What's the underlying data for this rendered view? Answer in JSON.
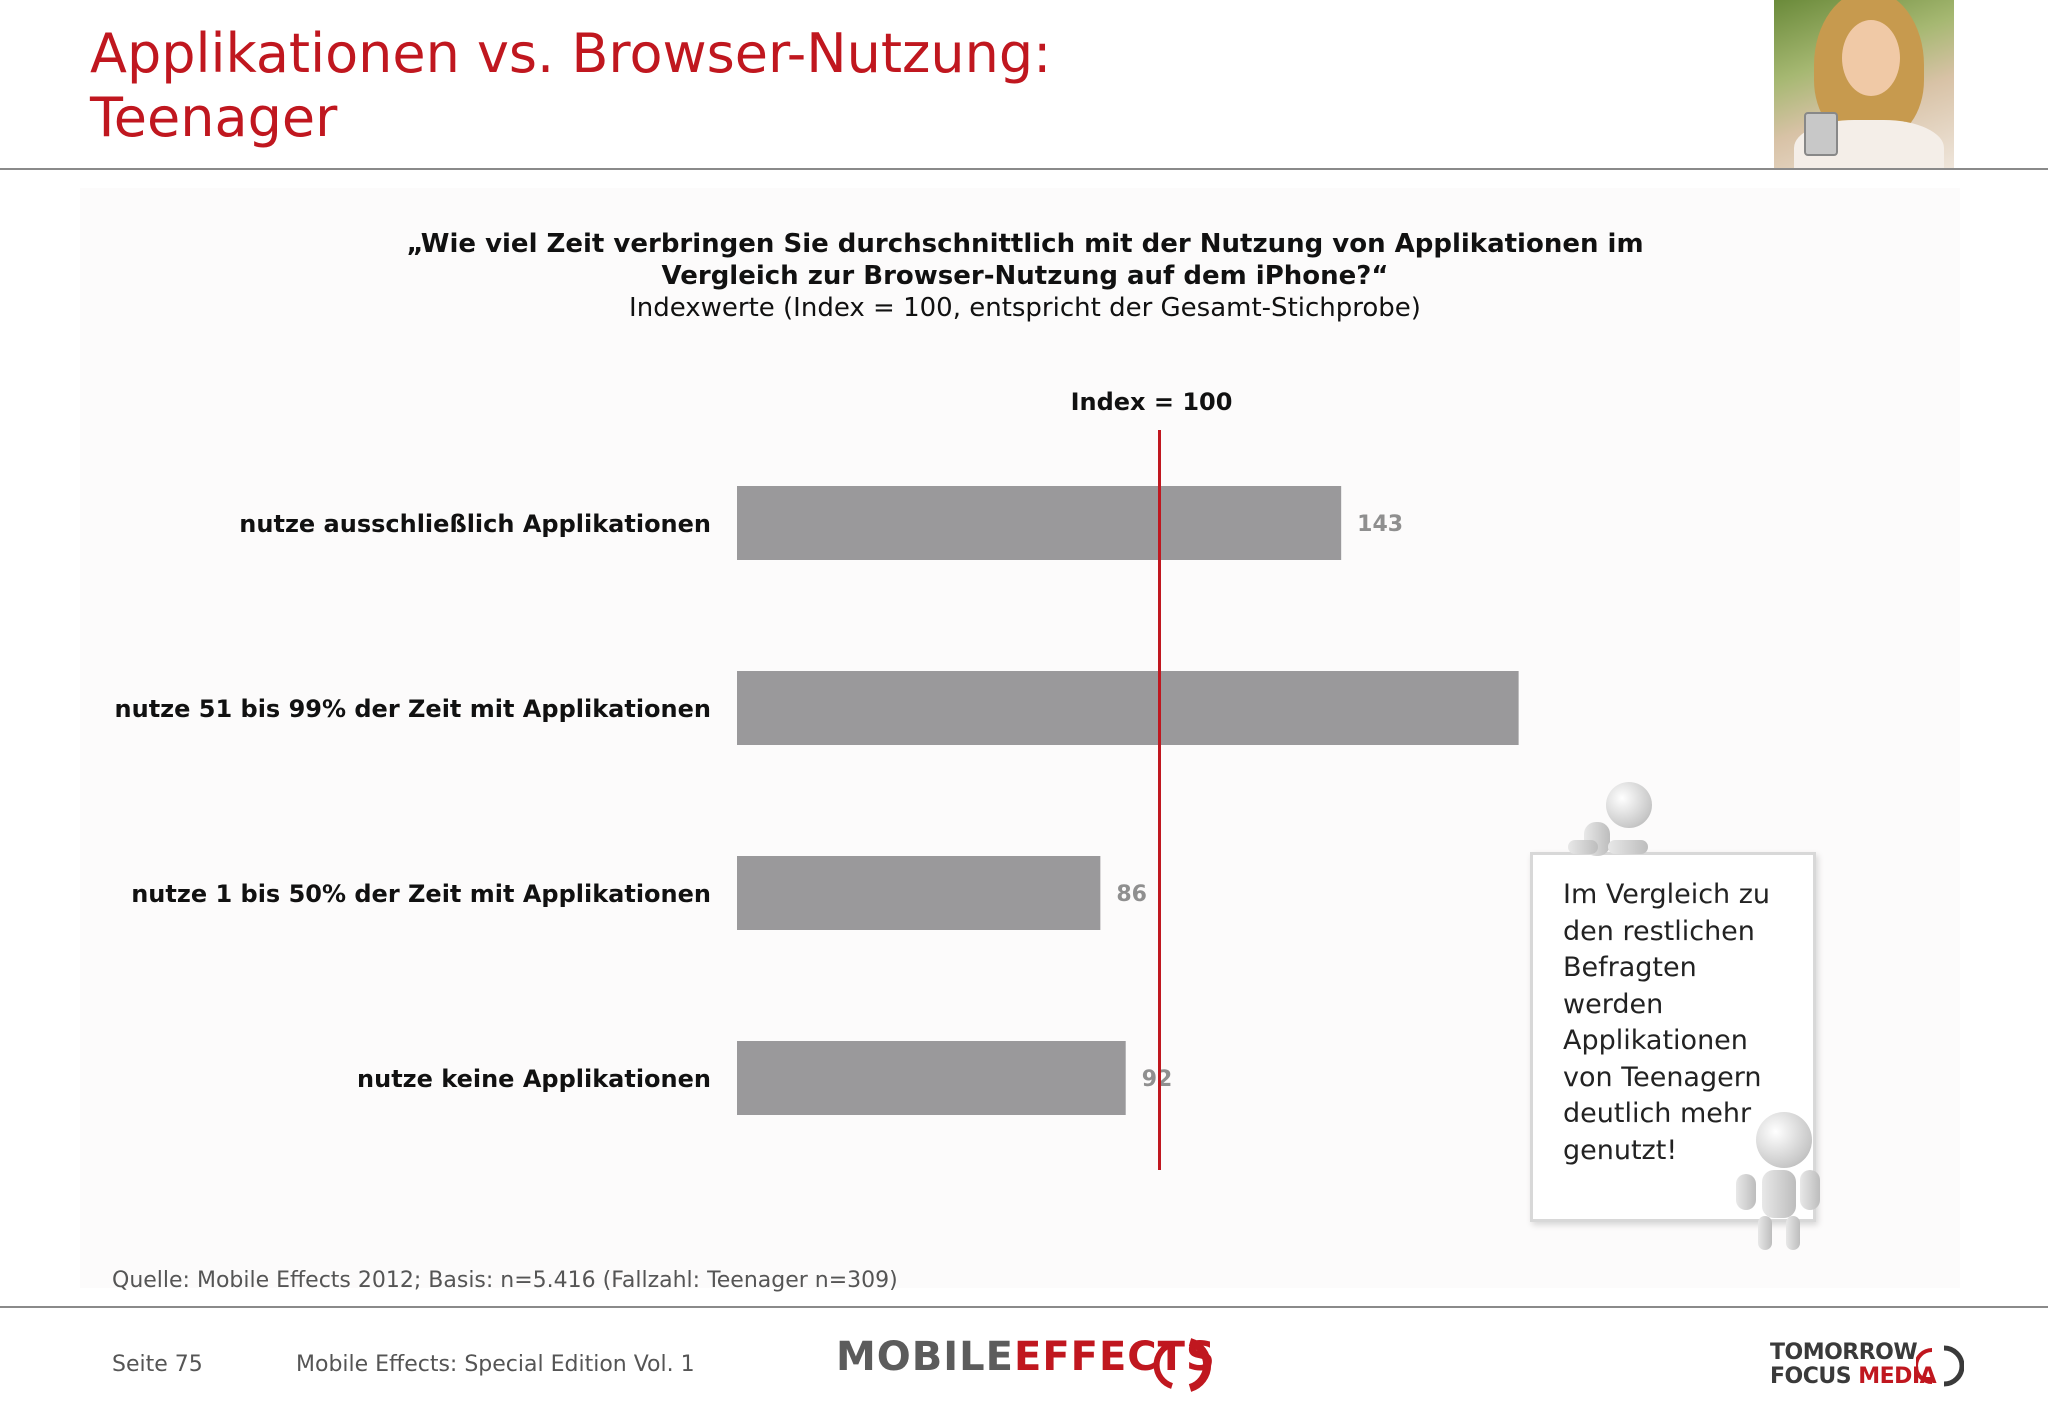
{
  "slide": {
    "title_line1": "Applikationen vs. Browser-Nutzung:",
    "title_line2": "Teenager"
  },
  "question": {
    "line1": "„Wie viel Zeit verbringen Sie durchschnittlich mit der Nutzung von Applikationen im",
    "line2": "Vergleich zur Browser-Nutzung auf dem iPhone?“",
    "subtitle": "Indexwerte (Index = 100, entspricht der Gesamt-Stichprobe)"
  },
  "chart_data": {
    "type": "bar",
    "orientation": "horizontal",
    "categories": [
      "nutze ausschließlich Applikationen",
      "nutze 51 bis 99% der Zeit mit Applikationen",
      "nutze 1 bis 50% der Zeit mit Applikationen",
      "nutze keine Applikationen"
    ],
    "values": [
      143,
      185,
      86,
      92
    ],
    "reference_line": {
      "value": 100,
      "label": "Index = 100",
      "color": "#c0171f"
    },
    "xlim": [
      0,
      190
    ],
    "grid": false,
    "bar_color": "#9a999b",
    "value_label_color": "#8f8f8f"
  },
  "note": {
    "text": "Im Vergleich zu den restlichen Befragten werden Applikationen von Teenagern deutlich mehr genutzt!"
  },
  "footer": {
    "source": "Quelle: Mobile Effects 2012; Basis: n=5.416 (Fallzahl: Teenager n=309)",
    "page": "Seite 75",
    "edition": "Mobile Effects: Special Edition Vol. 1",
    "logo_mobile": "MOBILE",
    "logo_effects": "EFFECTS",
    "logo_tfm_line1": "TOMORROW",
    "logo_tfm_line2a": "FOCUS",
    "logo_tfm_line2b": "MEDIA"
  },
  "colors": {
    "accent": "#c0171f",
    "bar": "#9a999b"
  }
}
